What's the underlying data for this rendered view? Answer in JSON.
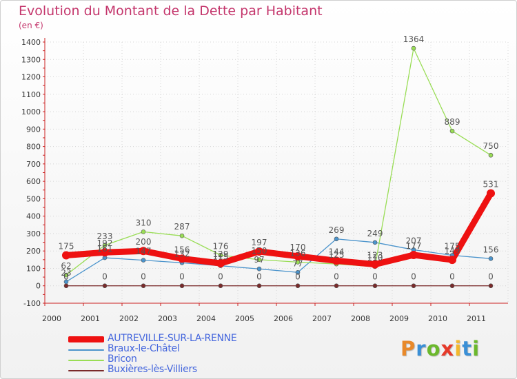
{
  "title": "Evolution du Montant de la Dette par Habitant",
  "unit": "(en €)",
  "logo": {
    "text": "Proxiti",
    "colors": [
      "#e8892a",
      "#3a8fd6",
      "#6bb82c",
      "#e63a2a",
      "#f3b82c",
      "#3a8fd6",
      "#6bb82c"
    ]
  },
  "chart_data": {
    "type": "line",
    "title": "Evolution du Montant de la Dette par Habitant",
    "ylabel": "(en €)",
    "xlabel": "",
    "x": [
      "2000",
      "2001",
      "2002",
      "2003",
      "2004",
      "2005",
      "2006",
      "2007",
      "2008",
      "2009",
      "2010",
      "2011"
    ],
    "ylim": [
      -100,
      1400
    ],
    "yticks": [
      -100,
      0,
      100,
      200,
      300,
      400,
      500,
      600,
      700,
      800,
      900,
      1000,
      1100,
      1200,
      1300,
      1400
    ],
    "grid": true,
    "legend_position": "bottom-left",
    "series": [
      {
        "name": "AUTREVILLE-SUR-LA-RENNE",
        "color": "#ee1111",
        "width": 9,
        "values": [
          175,
          192,
          200,
          156,
          129,
          197,
          170,
          144,
          123,
          177,
          149,
          531
        ],
        "labels": [
          "175",
          "192",
          "200",
          "156",
          "129",
          "197",
          "170",
          "144",
          "123",
          "177",
          "149",
          "531"
        ]
      },
      {
        "name": "Braux-le-Châtel",
        "color": "#4b94cc",
        "width": 1.3,
        "values": [
          23,
          161,
          147,
          132,
          115,
          97,
          77,
          269,
          249,
          207,
          175,
          156
        ],
        "labels": [
          "23",
          "161",
          "147",
          "132",
          "115",
          "97",
          "77",
          "269",
          "249",
          "207",
          "175",
          "156"
        ]
      },
      {
        "name": "Bricon",
        "color": "#99dd55",
        "width": 1.3,
        "values": [
          62,
          233,
          310,
          287,
          176,
          150,
          136,
          125,
          110,
          1364,
          889,
          750
        ],
        "labels": [
          "62",
          "233",
          "310",
          "287",
          "176",
          "150",
          "136",
          "125",
          "110",
          "1364",
          "889",
          "750"
        ]
      },
      {
        "name": "Buxières-lès-Villiers",
        "color": "#7a2a2a",
        "width": 1.3,
        "values": [
          0,
          0,
          0,
          0,
          0,
          0,
          0,
          0,
          0,
          0,
          0,
          0
        ],
        "labels": [
          "0",
          "0",
          "0",
          "0",
          "0",
          "0",
          "0",
          "0",
          "0",
          "0",
          "0",
          "0"
        ]
      }
    ]
  }
}
